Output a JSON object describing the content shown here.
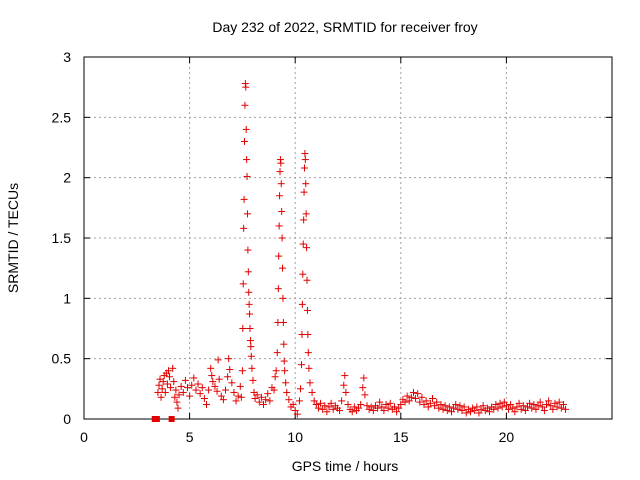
{
  "chart_data": {
    "type": "scatter",
    "title": "Day 232 of 2022, SRMTID for receiver froy",
    "xlabel": "GPS time / hours",
    "ylabel": "SRMTID / TECUs",
    "xlim": [
      0,
      25
    ],
    "ylim": [
      0,
      3
    ],
    "xticks": [
      "0",
      "5",
      "10",
      "15",
      "20"
    ],
    "xtick_values": [
      0,
      5,
      10,
      15,
      20
    ],
    "yticks": [
      "0",
      "0.5",
      "1",
      "1.5",
      "2",
      "2.5",
      "3"
    ],
    "ytick_values": [
      0,
      0.5,
      1,
      1.5,
      2,
      2.5,
      3
    ],
    "grid": true,
    "marker": "plus",
    "color": "#e00000",
    "series": [
      {
        "name": "SRMTID",
        "points": [
          [
            3.35,
            0.0
          ],
          [
            3.4,
            0.0
          ],
          [
            3.45,
            0.0
          ],
          [
            4.15,
            0.0
          ],
          [
            3.5,
            0.22
          ],
          [
            3.55,
            0.28
          ],
          [
            3.6,
            0.33
          ],
          [
            3.65,
            0.18
          ],
          [
            3.7,
            0.25
          ],
          [
            3.75,
            0.31
          ],
          [
            3.8,
            0.36
          ],
          [
            3.85,
            0.22
          ],
          [
            3.9,
            0.38
          ],
          [
            3.95,
            0.29
          ],
          [
            4.0,
            0.4
          ],
          [
            4.05,
            0.35
          ],
          [
            4.1,
            0.26
          ],
          [
            4.2,
            0.42
          ],
          [
            4.25,
            0.31
          ],
          [
            4.3,
            0.18
          ],
          [
            4.35,
            0.24
          ],
          [
            4.4,
            0.14
          ],
          [
            4.45,
            0.09
          ],
          [
            4.5,
            0.2
          ],
          [
            4.6,
            0.27
          ],
          [
            4.7,
            0.22
          ],
          [
            4.8,
            0.32
          ],
          [
            4.9,
            0.26
          ],
          [
            5.0,
            0.19
          ],
          [
            5.1,
            0.28
          ],
          [
            5.2,
            0.34
          ],
          [
            5.3,
            0.24
          ],
          [
            5.4,
            0.29
          ],
          [
            5.5,
            0.21
          ],
          [
            5.6,
            0.26
          ],
          [
            5.7,
            0.17
          ],
          [
            5.8,
            0.12
          ],
          [
            5.9,
            0.24
          ],
          [
            6.0,
            0.42
          ],
          [
            6.05,
            0.36
          ],
          [
            6.1,
            0.31
          ],
          [
            6.2,
            0.27
          ],
          [
            6.3,
            0.23
          ],
          [
            6.35,
            0.49
          ],
          [
            6.4,
            0.33
          ],
          [
            6.5,
            0.19
          ],
          [
            6.6,
            0.16
          ],
          [
            6.7,
            0.24
          ],
          [
            6.8,
            0.35
          ],
          [
            6.85,
            0.5
          ],
          [
            6.9,
            0.41
          ],
          [
            7.0,
            0.3
          ],
          [
            7.1,
            0.22
          ],
          [
            7.2,
            0.15
          ],
          [
            7.3,
            0.19
          ],
          [
            7.4,
            0.27
          ],
          [
            7.45,
            0.18
          ],
          [
            7.5,
            0.4
          ],
          [
            7.52,
            0.75
          ],
          [
            7.54,
            1.12
          ],
          [
            7.56,
            1.58
          ],
          [
            7.58,
            1.82
          ],
          [
            7.6,
            2.3
          ],
          [
            7.62,
            2.6
          ],
          [
            7.64,
            2.78
          ],
          [
            7.66,
            2.75
          ],
          [
            7.68,
            2.4
          ],
          [
            7.7,
            2.15
          ],
          [
            7.72,
            2.01
          ],
          [
            7.74,
            1.7
          ],
          [
            7.76,
            1.4
          ],
          [
            7.78,
            1.22
          ],
          [
            7.8,
            1.05
          ],
          [
            7.82,
            0.95
          ],
          [
            7.84,
            0.87
          ],
          [
            7.86,
            0.75
          ],
          [
            7.88,
            0.65
          ],
          [
            7.9,
            0.6
          ],
          [
            7.92,
            0.52
          ],
          [
            7.95,
            0.42
          ],
          [
            8.0,
            0.32
          ],
          [
            8.05,
            0.22
          ],
          [
            8.1,
            0.17
          ],
          [
            8.2,
            0.2
          ],
          [
            8.3,
            0.14
          ],
          [
            8.4,
            0.18
          ],
          [
            8.5,
            0.12
          ],
          [
            8.6,
            0.16
          ],
          [
            8.7,
            0.21
          ],
          [
            8.8,
            0.15
          ],
          [
            8.9,
            0.26
          ],
          [
            9.0,
            0.24
          ],
          [
            9.05,
            0.35
          ],
          [
            9.1,
            0.4
          ],
          [
            9.15,
            0.55
          ],
          [
            9.18,
            0.8
          ],
          [
            9.2,
            1.08
          ],
          [
            9.22,
            1.35
          ],
          [
            9.24,
            1.6
          ],
          [
            9.26,
            1.85
          ],
          [
            9.28,
            2.05
          ],
          [
            9.3,
            2.15
          ],
          [
            9.32,
            2.12
          ],
          [
            9.34,
            1.95
          ],
          [
            9.36,
            1.72
          ],
          [
            9.38,
            1.5
          ],
          [
            9.4,
            1.25
          ],
          [
            9.42,
            1.0
          ],
          [
            9.44,
            0.8
          ],
          [
            9.46,
            0.62
          ],
          [
            9.48,
            0.48
          ],
          [
            9.5,
            0.4
          ],
          [
            9.55,
            0.3
          ],
          [
            9.6,
            0.22
          ],
          [
            9.7,
            0.16
          ],
          [
            9.8,
            0.1
          ],
          [
            9.9,
            0.12
          ],
          [
            10.0,
            0.07
          ],
          [
            10.1,
            0.04
          ],
          [
            10.2,
            0.15
          ],
          [
            10.25,
            0.25
          ],
          [
            10.3,
            0.45
          ],
          [
            10.32,
            0.7
          ],
          [
            10.34,
            0.95
          ],
          [
            10.36,
            1.2
          ],
          [
            10.38,
            1.45
          ],
          [
            10.4,
            1.65
          ],
          [
            10.42,
            1.88
          ],
          [
            10.44,
            2.08
          ],
          [
            10.46,
            2.2
          ],
          [
            10.48,
            2.15
          ],
          [
            10.5,
            1.95
          ],
          [
            10.52,
            1.7
          ],
          [
            10.54,
            1.42
          ],
          [
            10.56,
            1.15
          ],
          [
            10.58,
            0.9
          ],
          [
            10.6,
            0.7
          ],
          [
            10.62,
            0.55
          ],
          [
            10.65,
            0.42
          ],
          [
            10.7,
            0.3
          ],
          [
            10.8,
            0.22
          ],
          [
            10.9,
            0.15
          ],
          [
            11.0,
            0.12
          ],
          [
            11.1,
            0.09
          ],
          [
            11.2,
            0.13
          ],
          [
            11.3,
            0.08
          ],
          [
            11.4,
            0.11
          ],
          [
            11.5,
            0.06
          ],
          [
            11.6,
            0.1
          ],
          [
            11.7,
            0.13
          ],
          [
            11.8,
            0.08
          ],
          [
            11.9,
            0.11
          ],
          [
            12.0,
            0.09
          ],
          [
            12.1,
            0.07
          ],
          [
            12.2,
            0.15
          ],
          [
            12.3,
            0.28
          ],
          [
            12.35,
            0.36
          ],
          [
            12.4,
            0.22
          ],
          [
            12.5,
            0.12
          ],
          [
            12.6,
            0.08
          ],
          [
            12.7,
            0.06
          ],
          [
            12.8,
            0.1
          ],
          [
            12.9,
            0.07
          ],
          [
            13.0,
            0.09
          ],
          [
            13.1,
            0.12
          ],
          [
            13.2,
            0.26
          ],
          [
            13.25,
            0.34
          ],
          [
            13.3,
            0.2
          ],
          [
            13.4,
            0.11
          ],
          [
            13.5,
            0.08
          ],
          [
            13.6,
            0.1
          ],
          [
            13.7,
            0.07
          ],
          [
            13.8,
            0.11
          ],
          [
            13.9,
            0.09
          ],
          [
            14.0,
            0.14
          ],
          [
            14.1,
            0.1
          ],
          [
            14.2,
            0.07
          ],
          [
            14.3,
            0.12
          ],
          [
            14.4,
            0.09
          ],
          [
            14.5,
            0.13
          ],
          [
            14.6,
            0.08
          ],
          [
            14.7,
            0.1
          ],
          [
            14.8,
            0.06
          ],
          [
            14.9,
            0.09
          ],
          [
            15.0,
            0.12
          ],
          [
            15.1,
            0.16
          ],
          [
            15.2,
            0.14
          ],
          [
            15.3,
            0.19
          ],
          [
            15.4,
            0.15
          ],
          [
            15.5,
            0.18
          ],
          [
            15.6,
            0.22
          ],
          [
            15.7,
            0.17
          ],
          [
            15.8,
            0.21
          ],
          [
            15.9,
            0.14
          ],
          [
            16.0,
            0.18
          ],
          [
            16.1,
            0.12
          ],
          [
            16.2,
            0.15
          ],
          [
            16.3,
            0.1
          ],
          [
            16.4,
            0.13
          ],
          [
            16.5,
            0.17
          ],
          [
            16.6,
            0.11
          ],
          [
            16.7,
            0.14
          ],
          [
            16.8,
            0.09
          ],
          [
            16.9,
            0.12
          ],
          [
            17.0,
            0.08
          ],
          [
            17.1,
            0.11
          ],
          [
            17.2,
            0.07
          ],
          [
            17.3,
            0.1
          ],
          [
            17.4,
            0.06
          ],
          [
            17.5,
            0.09
          ],
          [
            17.6,
            0.12
          ],
          [
            17.7,
            0.08
          ],
          [
            17.8,
            0.11
          ],
          [
            17.9,
            0.07
          ],
          [
            18.0,
            0.1
          ],
          [
            18.1,
            0.05
          ],
          [
            18.2,
            0.08
          ],
          [
            18.3,
            0.06
          ],
          [
            18.4,
            0.09
          ],
          [
            18.5,
            0.07
          ],
          [
            18.6,
            0.1
          ],
          [
            18.7,
            0.05
          ],
          [
            18.8,
            0.08
          ],
          [
            18.9,
            0.11
          ],
          [
            19.0,
            0.07
          ],
          [
            19.1,
            0.09
          ],
          [
            19.2,
            0.06
          ],
          [
            19.3,
            0.1
          ],
          [
            19.4,
            0.08
          ],
          [
            19.5,
            0.12
          ],
          [
            19.6,
            0.09
          ],
          [
            19.7,
            0.13
          ],
          [
            19.8,
            0.1
          ],
          [
            19.9,
            0.14
          ],
          [
            20.0,
            0.11
          ],
          [
            20.1,
            0.08
          ],
          [
            20.2,
            0.12
          ],
          [
            20.3,
            0.09
          ],
          [
            20.4,
            0.06
          ],
          [
            20.5,
            0.1
          ],
          [
            20.6,
            0.13
          ],
          [
            20.7,
            0.08
          ],
          [
            20.8,
            0.11
          ],
          [
            20.9,
            0.07
          ],
          [
            21.0,
            0.1
          ],
          [
            21.1,
            0.13
          ],
          [
            21.2,
            0.09
          ],
          [
            21.3,
            0.12
          ],
          [
            21.4,
            0.08
          ],
          [
            21.5,
            0.11
          ],
          [
            21.6,
            0.14
          ],
          [
            21.7,
            0.1
          ],
          [
            21.8,
            0.07
          ],
          [
            21.9,
            0.12
          ],
          [
            22.0,
            0.15
          ],
          [
            22.1,
            0.11
          ],
          [
            22.2,
            0.08
          ],
          [
            22.3,
            0.13
          ],
          [
            22.4,
            0.1
          ],
          [
            22.5,
            0.14
          ],
          [
            22.6,
            0.09
          ],
          [
            22.7,
            0.12
          ],
          [
            22.8,
            0.08
          ]
        ]
      }
    ]
  }
}
